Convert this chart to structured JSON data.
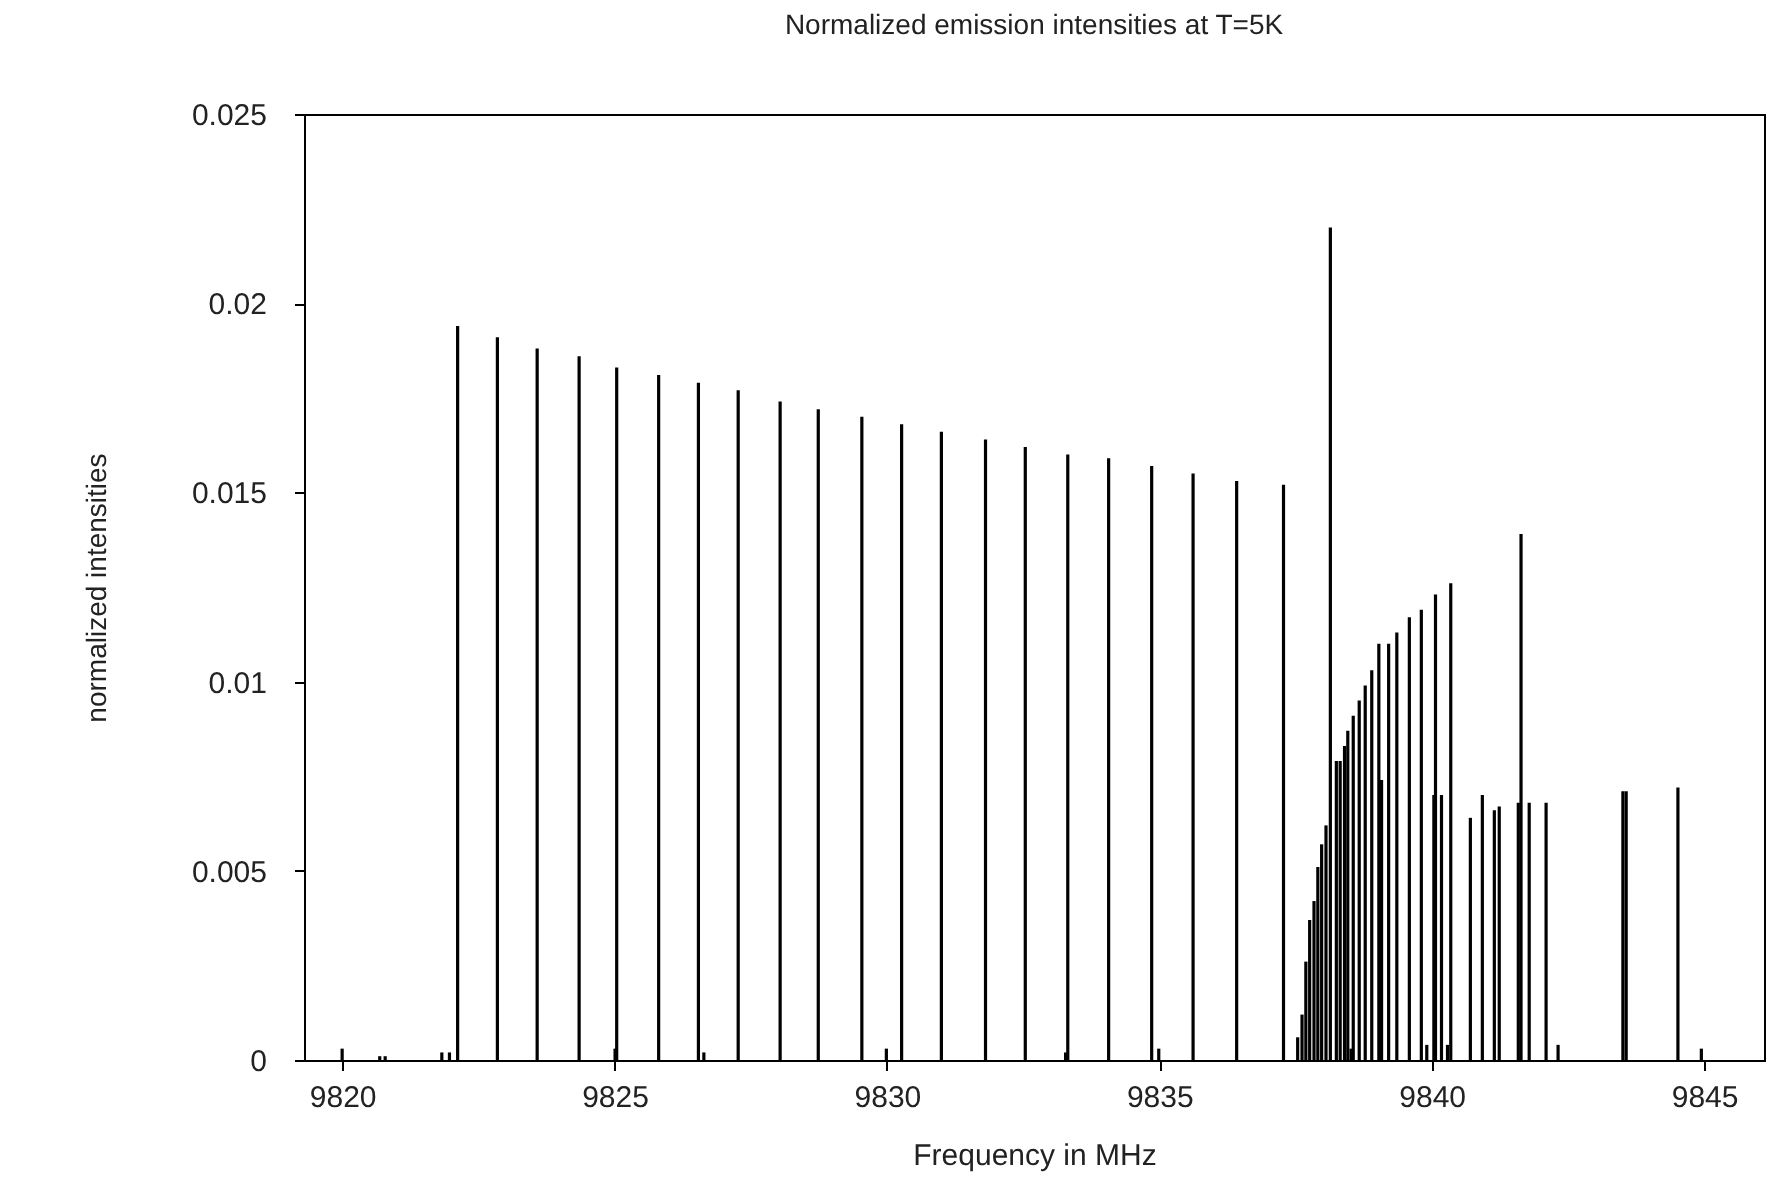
{
  "chart_data": {
    "type": "bar",
    "title": "Normalized emission intensities at T=5K",
    "xlabel": "Frequency in MHz",
    "ylabel": "normalized intensities",
    "x": [
      9820.0,
      9820.69,
      9820.79,
      9821.83,
      9821.97,
      9822.12,
      9822.85,
      9823.58,
      9824.35,
      9825.01,
      9825.04,
      9825.81,
      9826.54,
      9826.64,
      9827.27,
      9828.04,
      9828.74,
      9829.54,
      9829.99,
      9830.27,
      9831.0,
      9831.81,
      9832.54,
      9833.28,
      9833.32,
      9834.07,
      9834.86,
      9834.99,
      9835.62,
      9836.42,
      9837.28,
      9837.54,
      9837.62,
      9837.69,
      9837.76,
      9837.84,
      9837.91,
      9837.98,
      9838.06,
      9838.13,
      9838.14,
      9838.25,
      9838.32,
      9838.4,
      9838.46,
      9838.52,
      9838.56,
      9838.67,
      9838.78,
      9838.9,
      9839.03,
      9839.08,
      9839.21,
      9839.36,
      9839.59,
      9839.81,
      9839.91,
      9840.04,
      9840.07,
      9840.18,
      9840.29,
      9840.35,
      9840.71,
      9840.93,
      9841.15,
      9841.24,
      9841.59,
      9841.64,
      9841.79,
      9842.1,
      9842.32,
      9843.51,
      9843.57,
      9844.52,
      9844.95
    ],
    "values": [
      0.0003,
      0.0001,
      0.0001,
      0.0002,
      0.0002,
      0.0194,
      0.0191,
      0.0188,
      0.0186,
      0.0003,
      0.0183,
      0.0181,
      0.0179,
      0.0002,
      0.0177,
      0.0174,
      0.0172,
      0.017,
      0.0003,
      0.0168,
      0.0166,
      0.0164,
      0.0162,
      0.0002,
      0.016,
      0.0159,
      0.0157,
      0.0003,
      0.0155,
      0.0153,
      0.0152,
      0.0006,
      0.0012,
      0.0026,
      0.0037,
      0.0042,
      0.0051,
      0.0057,
      0.0062,
      null,
      0.022,
      0.0079,
      0.0079,
      0.0083,
      0.0087,
      0.0003,
      0.0091,
      0.0095,
      0.0099,
      0.0103,
      0.011,
      0.0074,
      0.011,
      0.0113,
      0.0117,
      0.0119,
      0.0004,
      0.007,
      0.0123,
      0.007,
      0.0004,
      0.0126,
      0.0064,
      0.007,
      0.0066,
      0.0067,
      0.0068,
      0.0139,
      0.0068,
      0.0068,
      0.0004,
      0.0071,
      0.0071,
      0.0072,
      0.0003
    ],
    "color": "#000000",
    "xlim": [
      9819.3,
      9846.1
    ],
    "ylim": [
      0,
      0.025
    ],
    "xticks": [
      9820,
      9825,
      9830,
      9835,
      9840,
      9845
    ],
    "yticks": [
      0,
      0.005,
      0.01,
      0.015,
      0.02,
      0.025
    ],
    "grid": false
  }
}
